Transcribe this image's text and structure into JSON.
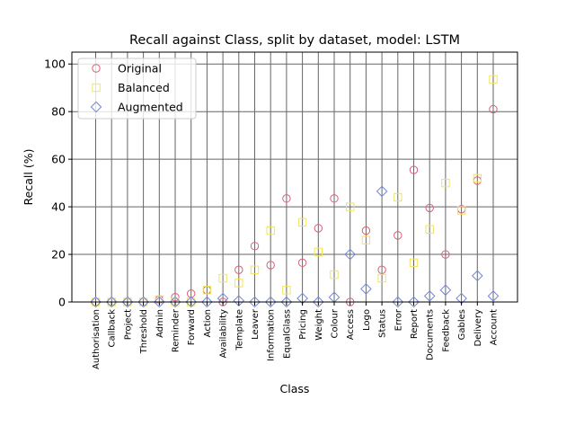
{
  "chart_data": {
    "type": "scatter",
    "title": "Recall against Class, split by dataset, model: LSTM",
    "xlabel": "Class",
    "ylabel": "Recall (%)",
    "ylim": [
      0,
      105
    ],
    "yticks": [
      "0",
      "20",
      "40",
      "60",
      "80",
      "100"
    ],
    "grid": true,
    "legend_position": "top-left",
    "categories": [
      "Authorisation",
      "Callback",
      "Project",
      "Threshold",
      "Admin",
      "Reminder",
      "Forward",
      "Action",
      "Availability",
      "Template",
      "Leaver",
      "Information",
      "EqualGlass",
      "Pricing",
      "Weight",
      "Colour",
      "Access",
      "Logo",
      "Status",
      "Error",
      "Report",
      "Documents",
      "Feedback",
      "Gables",
      "Delivery",
      "Account"
    ],
    "series": [
      {
        "name": "Original",
        "marker": "circle",
        "color": "#d6607a",
        "values": [
          0,
          0,
          0,
          0,
          1,
          2,
          3.5,
          5,
          0,
          13.5,
          23.5,
          15.5,
          43.5,
          16.5,
          31,
          43.5,
          0,
          30,
          13.5,
          28,
          55.5,
          39.5,
          20,
          39,
          51,
          81
        ]
      },
      {
        "name": "Balanced",
        "marker": "square",
        "color": "#f2e45c",
        "values": [
          0,
          0,
          0,
          0,
          1,
          0,
          0,
          5,
          10,
          8,
          13.5,
          30,
          5,
          33.5,
          21,
          11.5,
          40,
          26,
          10,
          44,
          16.5,
          30.5,
          50,
          38.5,
          52,
          93.5
        ]
      },
      {
        "name": "Augmented",
        "marker": "diamond",
        "color": "#7286d0",
        "values": [
          0,
          0,
          0,
          0,
          0,
          0,
          0,
          0,
          1.5,
          0.5,
          0,
          0,
          0,
          1.5,
          0,
          2,
          20,
          5.5,
          46.5,
          0,
          0,
          2.5,
          5,
          1.5,
          11,
          2.5
        ]
      }
    ]
  }
}
